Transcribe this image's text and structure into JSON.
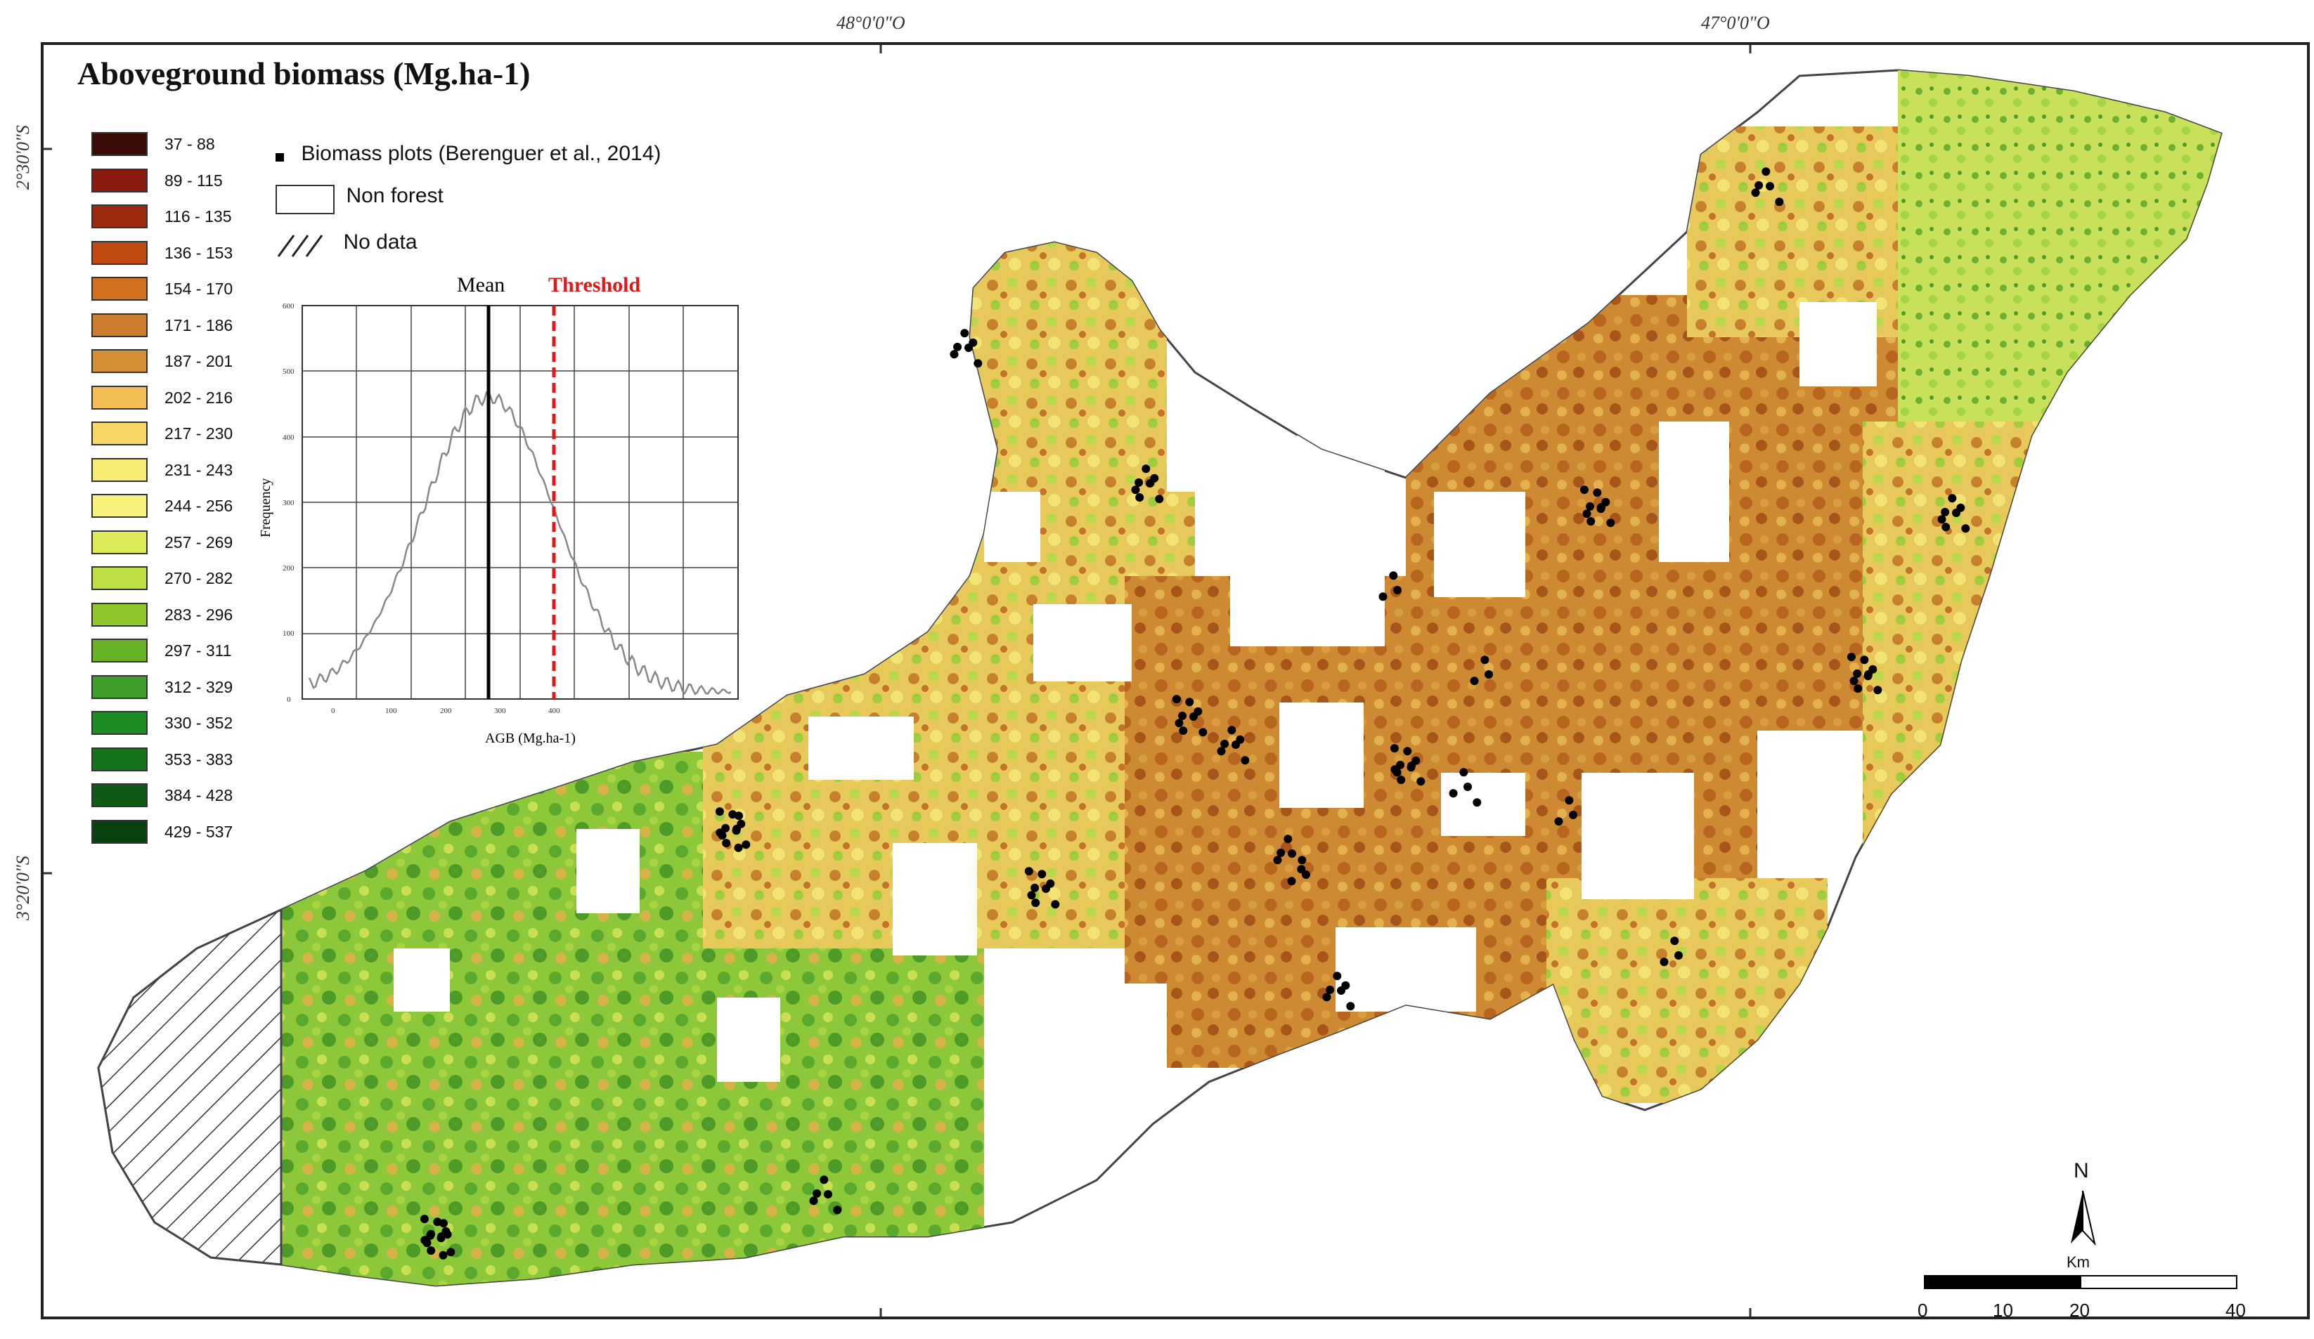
{
  "title": "Aboveground biomass (Mg.ha-1)",
  "coordinates": {
    "lon_ticks": [
      "48°0'0\"O",
      "47°0'0\"O"
    ],
    "lat_ticks": [
      "2°30'0\"S",
      "3°20'0\"S"
    ]
  },
  "legend": {
    "classes": [
      {
        "label": "37 - 88",
        "color": "#3a0a06"
      },
      {
        "label": "89 - 115",
        "color": "#8a1a0c"
      },
      {
        "label": "116 - 135",
        "color": "#9c2a0e"
      },
      {
        "label": "136 - 153",
        "color": "#c04a12"
      },
      {
        "label": "154 - 170",
        "color": "#d2701f"
      },
      {
        "label": "171 - 186",
        "color": "#cd7d2e"
      },
      {
        "label": "187 - 201",
        "color": "#d48f35"
      },
      {
        "label": "202 - 216",
        "color": "#f2be55"
      },
      {
        "label": "217 - 230",
        "color": "#f7d766"
      },
      {
        "label": "231 - 243",
        "color": "#f9ec74"
      },
      {
        "label": "244 - 256",
        "color": "#f6f27c"
      },
      {
        "label": "257 - 269",
        "color": "#dcea5a"
      },
      {
        "label": "270 - 282",
        "color": "#bddf44"
      },
      {
        "label": "283 - 296",
        "color": "#8fc72a"
      },
      {
        "label": "297 - 311",
        "color": "#68b325"
      },
      {
        "label": "312 - 329",
        "color": "#3f9f28"
      },
      {
        "label": "330 - 352",
        "color": "#1f8b24"
      },
      {
        "label": "353 - 383",
        "color": "#15731c"
      },
      {
        "label": "384 - 428",
        "color": "#0e5a15"
      },
      {
        "label": "429 - 537",
        "color": "#07420e"
      }
    ]
  },
  "map_key": {
    "plots_label": "Biomass plots (Berenguer et al., 2014)",
    "non_forest_label": "Non forest",
    "no_data_label": "No data"
  },
  "histogram": {
    "mean_label": "Mean",
    "threshold_label": "Threshold",
    "mean_color": "#000000",
    "threshold_color": "#e01818",
    "xlabel": "AGB (Mg.ha-1)",
    "ylabel": "Frequency",
    "x_ticks": [
      "0",
      "100",
      "200",
      "300",
      "400"
    ],
    "y_ticks": [
      "0",
      "100",
      "200",
      "300",
      "400",
      "500",
      "600"
    ]
  },
  "north_arrow": {
    "label": "N"
  },
  "scale_bar": {
    "unit": "Km",
    "ticks": [
      "0",
      "10",
      "20",
      "40"
    ]
  }
}
